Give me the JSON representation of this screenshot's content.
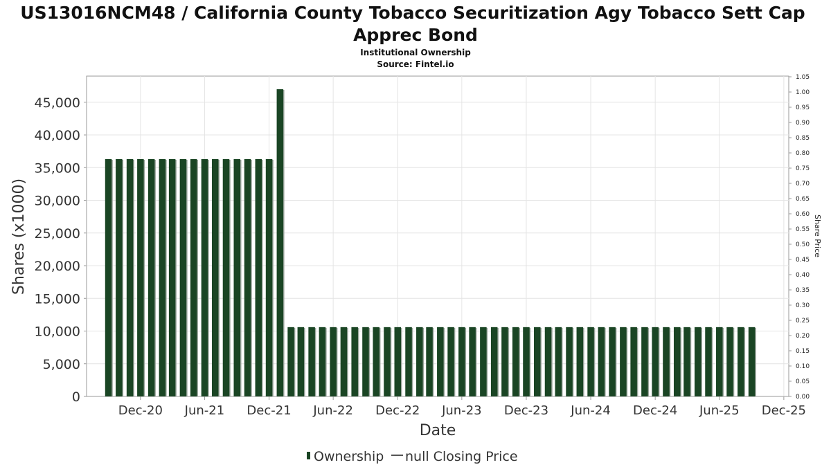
{
  "chart_data": {
    "type": "bar",
    "title_line1": "US13016NCM48 / California County Tobacco Securitization Agy Tobacco Sett Cap",
    "title_line2": "Apprec Bond",
    "subtitle": "Institutional Ownership",
    "source": "Source: Fintel.io",
    "xlabel": "Date",
    "ylabel": "Shares (x1000)",
    "y2label": "Share Price",
    "ylim": [
      0,
      49000
    ],
    "y_ticks": [
      "0",
      "5,000",
      "10,000",
      "15,000",
      "20,000",
      "25,000",
      "30,000",
      "35,000",
      "40,000",
      "45,000"
    ],
    "y2lim": [
      0,
      1.05
    ],
    "y2_ticks": [
      "0.00",
      "0.05",
      "0.10",
      "0.15",
      "0.20",
      "0.25",
      "0.30",
      "0.35",
      "0.40",
      "0.45",
      "0.50",
      "0.55",
      "0.60",
      "0.65",
      "0.70",
      "0.75",
      "0.80",
      "0.85",
      "0.90",
      "0.95",
      "1.00",
      "1.05"
    ],
    "x_range": [
      "2020-07-01",
      "2025-12-15"
    ],
    "x_ticks": [
      {
        "date": "2020-12-01",
        "label": "Dec-20"
      },
      {
        "date": "2021-06-01",
        "label": "Jun-21"
      },
      {
        "date": "2021-12-01",
        "label": "Dec-21"
      },
      {
        "date": "2022-06-01",
        "label": "Jun-22"
      },
      {
        "date": "2022-12-01",
        "label": "Dec-22"
      },
      {
        "date": "2023-06-01",
        "label": "Jun-23"
      },
      {
        "date": "2023-12-01",
        "label": "Dec-23"
      },
      {
        "date": "2024-06-01",
        "label": "Jun-24"
      },
      {
        "date": "2024-12-01",
        "label": "Dec-24"
      },
      {
        "date": "2025-06-01",
        "label": "Jun-25"
      },
      {
        "date": "2025-12-01",
        "label": "Dec-25"
      }
    ],
    "grid": true,
    "legend_position": "bottom-center",
    "series": [
      {
        "name": "Ownership",
        "color": "#1a4524",
        "x": [
          "2020-09-01",
          "2020-10-01",
          "2020-11-01",
          "2020-12-01",
          "2021-01-01",
          "2021-02-01",
          "2021-03-01",
          "2021-04-01",
          "2021-05-01",
          "2021-06-01",
          "2021-07-01",
          "2021-08-01",
          "2021-09-01",
          "2021-10-01",
          "2021-11-01",
          "2021-12-01",
          "2022-01-01",
          "2022-02-01",
          "2022-03-01",
          "2022-04-01",
          "2022-05-01",
          "2022-06-01",
          "2022-07-01",
          "2022-08-01",
          "2022-09-01",
          "2022-10-01",
          "2022-11-01",
          "2022-12-01",
          "2023-01-01",
          "2023-02-01",
          "2023-03-01",
          "2023-04-01",
          "2023-05-01",
          "2023-06-01",
          "2023-07-01",
          "2023-08-01",
          "2023-09-01",
          "2023-10-01",
          "2023-11-01",
          "2023-12-01",
          "2024-01-01",
          "2024-02-01",
          "2024-03-01",
          "2024-04-01",
          "2024-05-01",
          "2024-06-01",
          "2024-07-01",
          "2024-08-01",
          "2024-09-01",
          "2024-10-01",
          "2024-11-01",
          "2024-12-01",
          "2025-01-01",
          "2025-02-01",
          "2025-03-01",
          "2025-04-01",
          "2025-05-01",
          "2025-06-01",
          "2025-07-01",
          "2025-08-01",
          "2025-09-01"
        ],
        "values": [
          36300,
          36300,
          36300,
          36300,
          36300,
          36300,
          36300,
          36300,
          36300,
          36300,
          36300,
          36300,
          36300,
          36300,
          36300,
          36300,
          47000,
          10600,
          10600,
          10600,
          10600,
          10600,
          10600,
          10600,
          10600,
          10600,
          10600,
          10600,
          10600,
          10600,
          10600,
          10600,
          10600,
          10600,
          10600,
          10600,
          10600,
          10600,
          10600,
          10600,
          10600,
          10600,
          10600,
          10600,
          10600,
          10600,
          10600,
          10600,
          10600,
          10600,
          10600,
          10600,
          10600,
          10600,
          10600,
          10600,
          10600,
          10600,
          10600,
          10600,
          10600
        ]
      }
    ],
    "legend": [
      {
        "label": "Ownership",
        "kind": "bar",
        "color": "#1a4524"
      },
      {
        "label": "null Closing Price",
        "kind": "line",
        "color": "#555555"
      }
    ]
  }
}
